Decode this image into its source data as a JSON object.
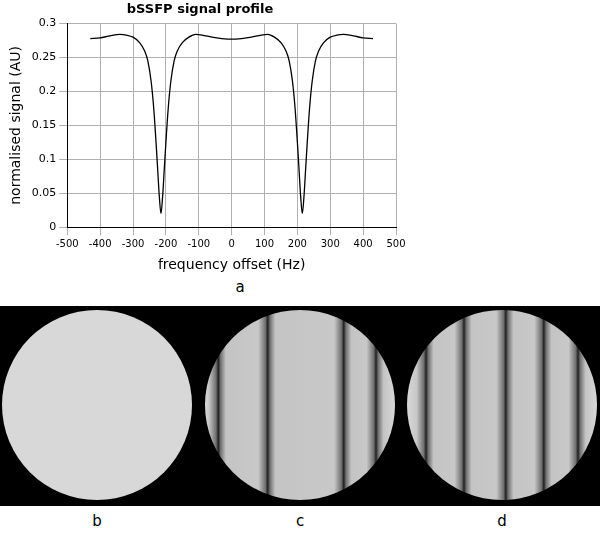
{
  "chart_data": {
    "type": "line",
    "title": "bSSFP signal profile",
    "x_label": "frequency offset (Hz)",
    "y_label": "normalised signal (AU)",
    "x": [
      -430,
      -400,
      -370,
      -340,
      -320,
      -300,
      -280,
      -265,
      -255,
      -245,
      -237,
      -230,
      -225,
      -220,
      -215,
      -210,
      -205,
      -200,
      -193,
      -185,
      -175,
      -165,
      -150,
      -130,
      -110,
      -90,
      -60,
      -30,
      0,
      30,
      60,
      90,
      110,
      130,
      150,
      165,
      175,
      185,
      193,
      200,
      205,
      210,
      215,
      220,
      225,
      230,
      237,
      245,
      255,
      265,
      280,
      300,
      320,
      340,
      370,
      400,
      430
    ],
    "values": [
      0.278,
      0.279,
      0.282,
      0.284,
      0.283,
      0.28,
      0.272,
      0.26,
      0.245,
      0.215,
      0.175,
      0.125,
      0.085,
      0.045,
      0.02,
      0.045,
      0.085,
      0.125,
      0.175,
      0.215,
      0.245,
      0.26,
      0.272,
      0.28,
      0.284,
      0.283,
      0.28,
      0.278,
      0.277,
      0.278,
      0.28,
      0.283,
      0.284,
      0.28,
      0.272,
      0.26,
      0.245,
      0.215,
      0.175,
      0.125,
      0.085,
      0.045,
      0.02,
      0.045,
      0.085,
      0.125,
      0.175,
      0.215,
      0.245,
      0.26,
      0.272,
      0.28,
      0.283,
      0.284,
      0.282,
      0.279,
      0.278
    ],
    "color": "#000000",
    "xlim": [
      -500,
      500
    ],
    "xticks": [
      -500,
      -400,
      -300,
      -200,
      -100,
      0,
      100,
      200,
      300,
      400,
      500
    ],
    "ylim": [
      0,
      0.3
    ],
    "yticks": [
      0,
      0.05,
      0.1,
      0.15,
      0.2,
      0.25,
      0.3
    ],
    "grid": true
  },
  "panel_labels": [
    "a",
    "b",
    "c",
    "d"
  ]
}
